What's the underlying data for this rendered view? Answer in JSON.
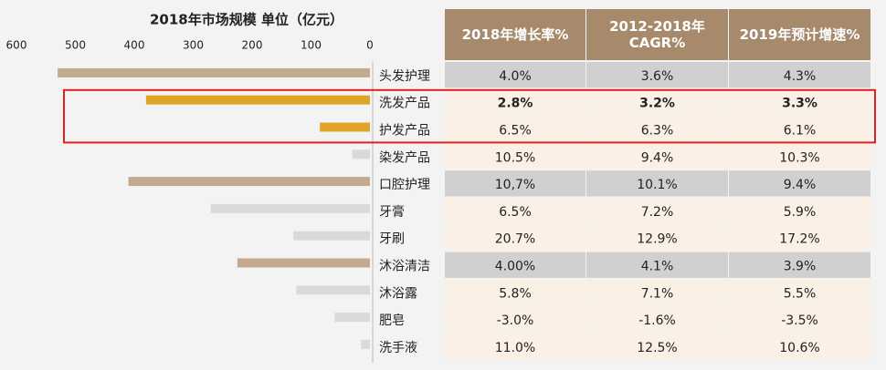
{
  "chart_data": {
    "type": "bar",
    "orientation": "horizontal",
    "title": "2018年市场规模 单位（亿元）",
    "categories": [
      "头发护理",
      "洗发产品",
      "护发产品",
      "染发产品",
      "口腔护理",
      "牙膏",
      "牙刷",
      "沐浴清洁",
      "沐浴露",
      "肥皂",
      "洗手液"
    ],
    "values": [
      530,
      380,
      85,
      30,
      410,
      270,
      130,
      225,
      125,
      60,
      15
    ],
    "colors": [
      "#c3a98e",
      "#e0a526",
      "#e0a526",
      "#d9d9d9",
      "#c3a98e",
      "#d9d9d9",
      "#d9d9d9",
      "#c3a98e",
      "#d9d9d9",
      "#d9d9d9",
      "#d9d9d9"
    ],
    "xlim": [
      600,
      0
    ],
    "xticks": [
      600,
      500,
      400,
      300,
      200,
      100,
      0
    ]
  },
  "table": {
    "columns": [
      "2018年增长率%",
      "2012-2018年\nCAGR%",
      "2019年预计增速%"
    ],
    "rows": [
      [
        "4.0%",
        "3.6%",
        "4.3%"
      ],
      [
        "2.8%",
        "3.2%",
        "3.3%"
      ],
      [
        "6.5%",
        "6.3%",
        "6.1%"
      ],
      [
        "10.5%",
        "9.4%",
        "10.3%"
      ],
      [
        "10,7%",
        "10.1%",
        "9.4%"
      ],
      [
        "6.5%",
        "7.2%",
        "5.9%"
      ],
      [
        "20.7%",
        "12.9%",
        "17.2%"
      ],
      [
        "4.00%",
        "4.1%",
        "3.9%"
      ],
      [
        "5.8%",
        "7.1%",
        "5.5%"
      ],
      [
        "-3.0%",
        "-1.6%",
        "-3.5%"
      ],
      [
        "11.0%",
        "12.5%",
        "10.6%"
      ]
    ]
  }
}
